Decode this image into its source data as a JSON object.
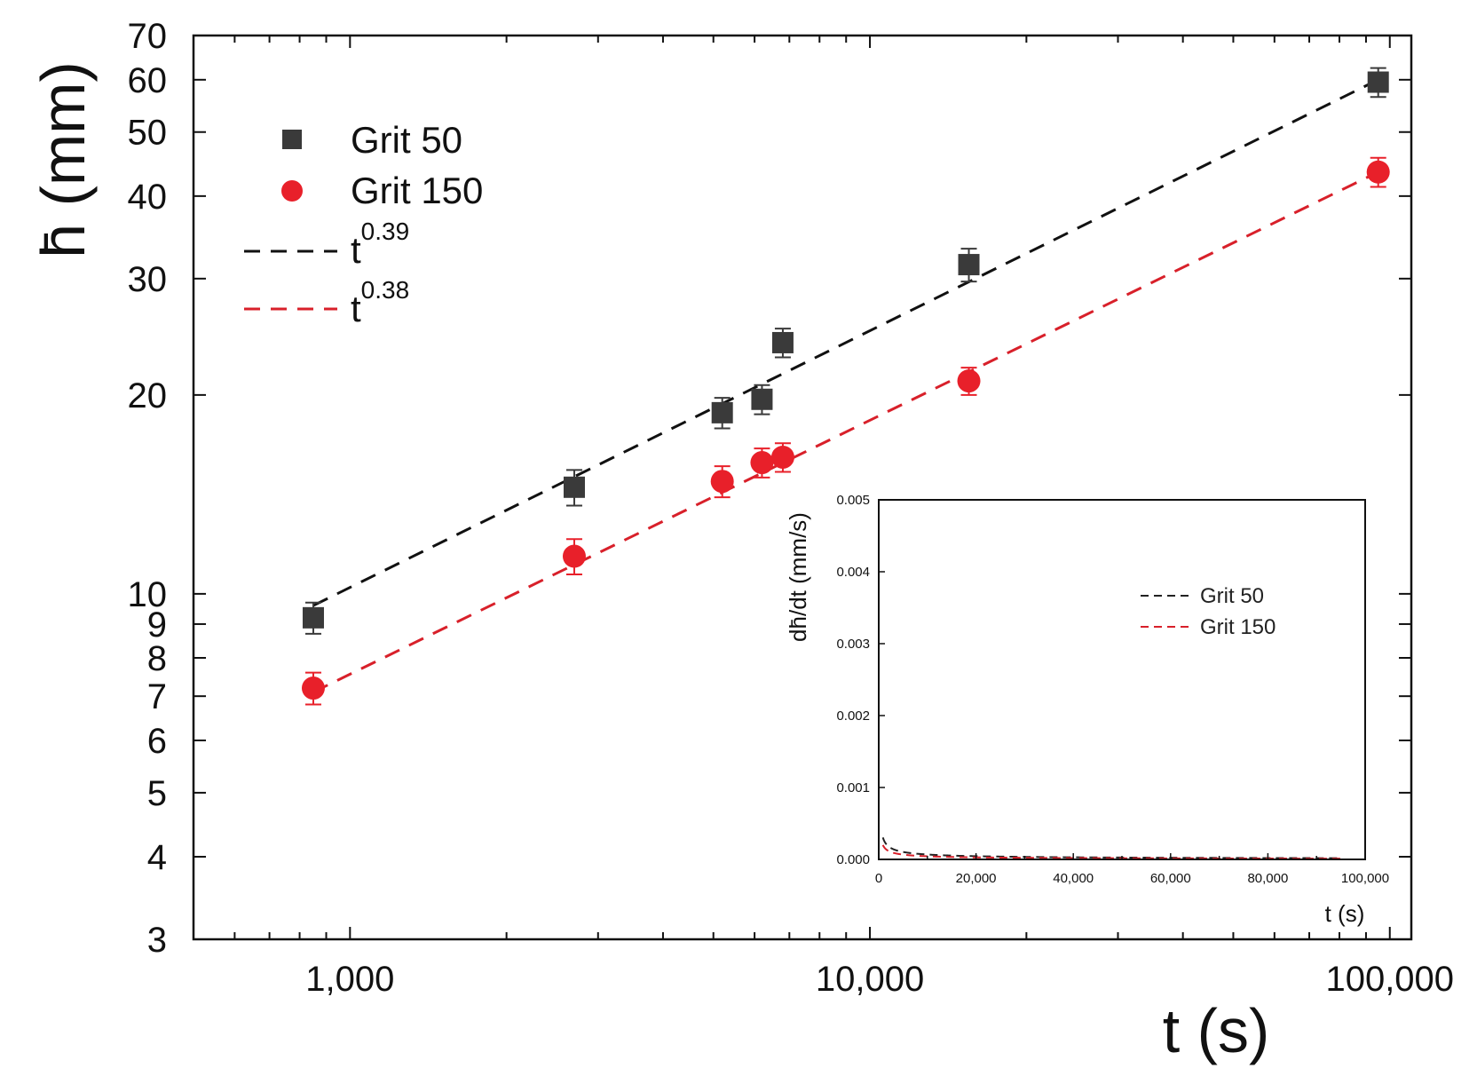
{
  "chart_data": [
    {
      "name": "main",
      "type": "scatter",
      "x_scale": "log",
      "y_scale": "log",
      "xlim": [
        500,
        110000
      ],
      "ylim": [
        3,
        70
      ],
      "xlabel": "t (s)",
      "ylabel": "h̄ (mm)",
      "x_ticks": [
        1000,
        10000,
        100000
      ],
      "x_tick_labels": [
        "1,000",
        "10,000",
        "100,000"
      ],
      "y_ticks": [
        3,
        4,
        5,
        6,
        7,
        8,
        9,
        10,
        20,
        30,
        40,
        50,
        60,
        70
      ],
      "y_tick_labels": [
        "3",
        "4",
        "5",
        "6",
        "7",
        "8",
        "9",
        "10",
        "20",
        "30",
        "40",
        "50",
        "60",
        "70"
      ],
      "legend_position": "top-left",
      "series": [
        {
          "name": "Grit 50",
          "marker": "square",
          "color": "#3a3a3a",
          "x": [
            850,
            2700,
            5200,
            6200,
            6800,
            15500,
            95000
          ],
          "y": [
            9.2,
            14.5,
            18.8,
            19.7,
            24.0,
            31.5,
            59.5
          ],
          "yerr": [
            0.5,
            0.9,
            1.0,
            1.0,
            1.2,
            1.8,
            3.0
          ]
        },
        {
          "name": "Grit 150",
          "marker": "circle",
          "color": "#e8202a",
          "x": [
            850,
            2700,
            5200,
            6200,
            6800,
            15500,
            95000
          ],
          "y": [
            7.2,
            11.4,
            14.8,
            15.8,
            16.1,
            21.0,
            43.5
          ],
          "yerr": [
            0.4,
            0.7,
            0.8,
            0.8,
            0.8,
            1.0,
            2.2
          ]
        }
      ],
      "fits": [
        {
          "label": "t",
          "exponent": "0.39",
          "color": "#111111",
          "x_range": [
            850,
            95000
          ],
          "y_start": 9.6,
          "y_end": 60.0
        },
        {
          "label": "t",
          "exponent": "0.38",
          "color": "#d8202a",
          "x_range": [
            850,
            95000
          ],
          "y_start": 7.1,
          "y_end": 43.5
        }
      ]
    },
    {
      "name": "inset",
      "type": "line",
      "xlim": [
        0,
        100000
      ],
      "ylim": [
        0,
        0.005
      ],
      "xlabel": "t (s)",
      "ylabel": "dh̄/dt (mm/s)",
      "x_ticks": [
        0,
        20000,
        40000,
        60000,
        80000,
        100000
      ],
      "x_tick_labels": [
        "0",
        "20,000",
        "40,000",
        "60,000",
        "80,000",
        "100,000"
      ],
      "y_ticks": [
        0,
        0.001,
        0.002,
        0.003,
        0.004,
        0.005
      ],
      "y_tick_labels": [
        "0.000",
        "0.001",
        "0.002",
        "0.003",
        "0.004",
        "0.005"
      ],
      "legend_position": "top-right",
      "series": [
        {
          "name": "Grit 50",
          "color": "#222222",
          "A": 0.0187,
          "exponent": -0.61,
          "x_range": [
            850,
            95000
          ]
        },
        {
          "name": "Grit 150",
          "color": "#d8202a",
          "A": 0.0131,
          "exponent": -0.62,
          "x_range": [
            850,
            95000
          ]
        }
      ]
    }
  ]
}
